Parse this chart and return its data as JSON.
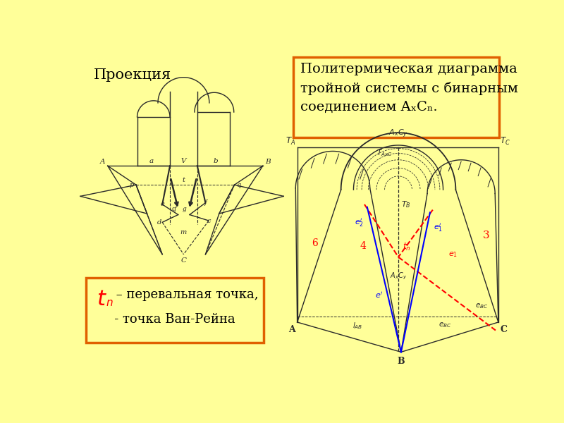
{
  "bg_color": "#FFFF99",
  "title_box_text": "Политермическая диаграмма\nтройной системы с бинарным\nсоединением AₓCₙ.",
  "title_box_color": "#E06000",
  "title_box_bg": "#FFFF99",
  "proj_label": "Проекция",
  "legend_line1_black": " – перевальная точка,",
  "legend_line2": "   - точка Ван-Рейна",
  "legend_box_color": "#E06000",
  "legend_box_bg": "#FFFF99",
  "fig_w": 8.0,
  "fig_h": 6.0,
  "dpi": 100
}
